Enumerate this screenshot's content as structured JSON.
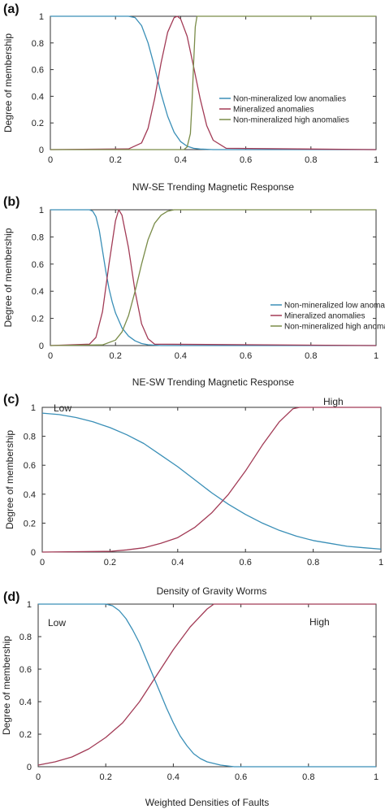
{
  "colors": {
    "low": "#3a8fb7",
    "mid": "#a23b56",
    "high": "#7a8c49",
    "axis": "#333333"
  },
  "chart_data": [
    {
      "panel": "(a)",
      "type": "line",
      "xlabel": "NW-SE Trending Magnetic Response",
      "ylabel": "Degree of membership",
      "xlim": [
        0,
        1
      ],
      "ylim": [
        0,
        1
      ],
      "xticks": [
        "0",
        "0.2",
        "0.4",
        "0.6",
        "0.8",
        "1"
      ],
      "yticks": [
        "0",
        "0.2",
        "0.4",
        "0.6",
        "0.8",
        "1"
      ],
      "legend_position": "center-right",
      "series": [
        {
          "name": "Non-mineralized low anomalies",
          "color_key": "low",
          "x": [
            0,
            0.24,
            0.26,
            0.28,
            0.3,
            0.32,
            0.34,
            0.36,
            0.38,
            0.4,
            0.42,
            0.44,
            0.46,
            0.5,
            0.55,
            1
          ],
          "y": [
            1,
            1,
            0.99,
            0.93,
            0.8,
            0.62,
            0.42,
            0.25,
            0.13,
            0.06,
            0.025,
            0.01,
            0.004,
            0,
            0,
            0
          ]
        },
        {
          "name": "Mineralized anomalies",
          "color_key": "mid",
          "x": [
            0,
            0.24,
            0.28,
            0.3,
            0.32,
            0.34,
            0.36,
            0.38,
            0.39,
            0.4,
            0.42,
            0.44,
            0.46,
            0.48,
            0.5,
            0.54,
            1
          ],
          "y": [
            0,
            0.005,
            0.05,
            0.16,
            0.38,
            0.65,
            0.88,
            0.99,
            1,
            0.98,
            0.85,
            0.62,
            0.38,
            0.18,
            0.07,
            0.01,
            0
          ]
        },
        {
          "name": "Non-mineralized high anomalies",
          "color_key": "high",
          "x": [
            0,
            0.41,
            0.42,
            0.43,
            0.435,
            0.44,
            0.445,
            0.45,
            1
          ],
          "y": [
            0,
            0,
            0.02,
            0.12,
            0.35,
            0.65,
            0.92,
            1,
            1
          ]
        }
      ]
    },
    {
      "panel": "(b)",
      "type": "line",
      "xlabel": "NE-SW Trending Magnetic Response",
      "ylabel": "Degree of membership",
      "xlim": [
        0,
        1
      ],
      "ylim": [
        0,
        1
      ],
      "xticks": [
        "0",
        "0.2",
        "0.4",
        "0.6",
        "0.8",
        "1"
      ],
      "yticks": [
        "0",
        "0.2",
        "0.4",
        "0.6",
        "0.8",
        "1"
      ],
      "legend_position": "bottom-right",
      "series": [
        {
          "name": "Non-mineralized low anomalies",
          "color_key": "low",
          "x": [
            0,
            0.12,
            0.13,
            0.14,
            0.15,
            0.16,
            0.17,
            0.18,
            0.19,
            0.2,
            0.22,
            0.24,
            0.26,
            0.28,
            0.3,
            0.34,
            1
          ],
          "y": [
            1,
            1,
            0.99,
            0.95,
            0.85,
            0.7,
            0.55,
            0.42,
            0.32,
            0.24,
            0.13,
            0.07,
            0.035,
            0.015,
            0.006,
            0,
            0
          ]
        },
        {
          "name": "Mineralized anomalies",
          "color_key": "mid",
          "x": [
            0,
            0.12,
            0.14,
            0.16,
            0.18,
            0.2,
            0.21,
            0.22,
            0.24,
            0.26,
            0.28,
            0.3,
            0.32,
            1
          ],
          "y": [
            0,
            0.01,
            0.06,
            0.25,
            0.6,
            0.92,
            1,
            0.96,
            0.72,
            0.4,
            0.16,
            0.05,
            0.01,
            0
          ]
        },
        {
          "name": "Non-mineralized high anomalies",
          "color_key": "high",
          "x": [
            0,
            0.16,
            0.2,
            0.22,
            0.24,
            0.26,
            0.28,
            0.3,
            0.32,
            0.34,
            0.36,
            0.38,
            0.4,
            1
          ],
          "y": [
            0,
            0.005,
            0.04,
            0.1,
            0.22,
            0.4,
            0.6,
            0.78,
            0.9,
            0.96,
            0.99,
            1,
            1,
            1
          ]
        }
      ]
    },
    {
      "panel": "(c)",
      "type": "line",
      "xlabel": "Density of Gravity Worms",
      "ylabel": "Degree of membership",
      "xlim": [
        0,
        1
      ],
      "ylim": [
        0,
        1
      ],
      "xticks": [
        "0",
        "0.2",
        "0.4",
        "0.6",
        "0.8",
        "1"
      ],
      "yticks": [
        "0",
        "0.2",
        "0.4",
        "0.6",
        "0.8",
        "1"
      ],
      "annotations": [
        "Low",
        "High"
      ],
      "series": [
        {
          "name": "Low",
          "color_key": "low",
          "x": [
            0,
            0.05,
            0.1,
            0.15,
            0.2,
            0.25,
            0.3,
            0.35,
            0.4,
            0.45,
            0.5,
            0.55,
            0.6,
            0.65,
            0.7,
            0.75,
            0.8,
            0.85,
            0.9,
            0.95,
            1.0
          ],
          "y": [
            0.96,
            0.95,
            0.93,
            0.9,
            0.86,
            0.81,
            0.75,
            0.67,
            0.59,
            0.5,
            0.41,
            0.33,
            0.26,
            0.2,
            0.15,
            0.11,
            0.08,
            0.06,
            0.04,
            0.03,
            0.02
          ]
        },
        {
          "name": "High",
          "color_key": "mid",
          "x": [
            0,
            0.2,
            0.25,
            0.3,
            0.35,
            0.4,
            0.45,
            0.5,
            0.55,
            0.6,
            0.65,
            0.7,
            0.74,
            0.76,
            1.0
          ],
          "y": [
            0,
            0.005,
            0.015,
            0.03,
            0.06,
            0.1,
            0.17,
            0.27,
            0.4,
            0.56,
            0.74,
            0.9,
            0.99,
            1,
            1
          ]
        }
      ]
    },
    {
      "panel": "(d)",
      "type": "line",
      "xlabel": "Weighted Densities of Faults",
      "ylabel": "Degree of membership",
      "xlim": [
        0,
        1
      ],
      "ylim": [
        0,
        1
      ],
      "xticks": [
        "0",
        "0.2",
        "0.4",
        "0.6",
        "0.8",
        "1"
      ],
      "yticks": [
        "0",
        "0.2",
        "0.4",
        "0.6",
        "0.8",
        "1"
      ],
      "annotations": [
        "Low",
        "High"
      ],
      "series": [
        {
          "name": "Low",
          "color_key": "low",
          "x": [
            0,
            0.2,
            0.22,
            0.24,
            0.26,
            0.28,
            0.3,
            0.32,
            0.34,
            0.36,
            0.38,
            0.4,
            0.42,
            0.44,
            0.46,
            0.48,
            0.5,
            0.54,
            0.58,
            1.0
          ],
          "y": [
            1,
            1,
            0.99,
            0.96,
            0.91,
            0.84,
            0.76,
            0.66,
            0.56,
            0.46,
            0.36,
            0.27,
            0.19,
            0.13,
            0.08,
            0.05,
            0.03,
            0.01,
            0,
            0
          ]
        },
        {
          "name": "High",
          "color_key": "mid",
          "x": [
            0,
            0.05,
            0.1,
            0.15,
            0.2,
            0.25,
            0.3,
            0.35,
            0.4,
            0.45,
            0.5,
            0.52,
            0.54,
            1.0
          ],
          "y": [
            0.01,
            0.03,
            0.06,
            0.11,
            0.18,
            0.27,
            0.4,
            0.56,
            0.72,
            0.86,
            0.97,
            1,
            1,
            1
          ]
        }
      ]
    }
  ]
}
